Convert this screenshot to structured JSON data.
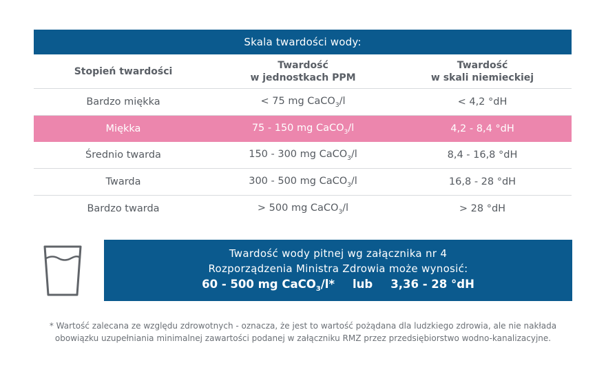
{
  "table": {
    "title": "Skala twardości wody:",
    "headers": {
      "col1": "Stopień twardości",
      "col2_line1": "Twardość",
      "col2_line2": "w jednostkach PPM",
      "col3_line1": "Twardość",
      "col3_line2": "w skali niemieckiej"
    },
    "rows": [
      {
        "level": "Bardzo miękka",
        "ppm_pre": "< 75 mg CaCO",
        "ppm_sub": "3",
        "ppm_post": "/l",
        "dh": "< 4,2 °dH"
      },
      {
        "level": "Miękka",
        "ppm_pre": "75 - 150 mg CaCO",
        "ppm_sub": "3",
        "ppm_post": "/l",
        "dh": "4,2 - 8,4 °dH"
      },
      {
        "level": "Średnio twarda",
        "ppm_pre": "150 - 300 mg CaCO",
        "ppm_sub": "3",
        "ppm_post": "/l",
        "dh": "8,4 - 16,8 °dH"
      },
      {
        "level": "Twarda",
        "ppm_pre": "300 - 500 mg CaCO",
        "ppm_sub": "3",
        "ppm_post": "/l",
        "dh": "16,8 - 28 °dH"
      },
      {
        "level": "Bardzo twarda",
        "ppm_pre": "> 500 mg CaCO",
        "ppm_sub": "3",
        "ppm_post": "/l",
        "dh": "> 28 °dH"
      }
    ]
  },
  "info": {
    "line1": "Twardość wody pitnej wg załącznika nr 4",
    "line2": "Rozporządzenia Ministra Zdrowia może wynosić:",
    "range_pre": "60 - 500 mg CaCO",
    "range_sub": "3",
    "range_post": "/l*",
    "or": "lub",
    "range_dh": "3,36 - 28 °dH"
  },
  "footnote": {
    "line1": "* Wartość zalecana ze względu zdrowotnych - oznacza, że jest to wartość pożądana dla ludzkiego zdrowia, ale nie nakłada",
    "line2": "obowiązku uzupełniania minimalnej zawartości podanej w załączniku RMZ przez przedsiębiorstwo wodno-kanalizacyjne."
  },
  "icons": {
    "glass": "water-glass-icon"
  },
  "colors": {
    "primary": "#0b5a8e",
    "highlight": "#ec86ad"
  }
}
